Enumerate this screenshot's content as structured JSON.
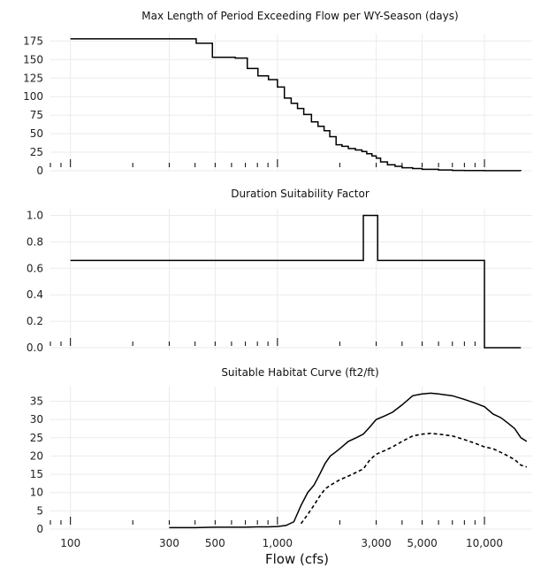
{
  "chart_data": [
    {
      "type": "line",
      "title": "Max Length of Period Exceeding Flow per WY-Season (days)",
      "xscale": "log",
      "xlim": [
        80,
        17000
      ],
      "ylim": [
        0,
        185
      ],
      "yticks": [
        0,
        25,
        50,
        75,
        100,
        125,
        150,
        175
      ],
      "ytick_labels": [
        "0",
        "25",
        "50",
        "75",
        "100",
        "125",
        "150",
        "175"
      ],
      "grid": true,
      "series": [
        {
          "step": true,
          "x": [
            100,
            405,
            485,
            625,
            715,
            805,
            905,
            1000,
            1080,
            1165,
            1250,
            1340,
            1460,
            1570,
            1680,
            1790,
            1920,
            2050,
            2200,
            2380,
            2560,
            2700,
            2860,
            3000,
            3150,
            3400,
            3700,
            4000,
            4500,
            5000,
            6000,
            7000,
            8000,
            10000,
            15000
          ],
          "y": [
            178,
            172,
            153,
            152,
            138,
            128,
            123,
            113,
            98,
            91,
            84,
            76,
            66,
            60,
            54,
            46,
            35,
            33,
            30,
            28,
            26,
            23,
            20,
            17,
            12,
            8,
            6,
            4,
            3,
            2,
            1,
            0.5,
            0.3,
            0.2,
            0
          ]
        }
      ]
    },
    {
      "type": "line",
      "title": "Duration Suitability Factor",
      "xscale": "log",
      "xlim": [
        80,
        17000
      ],
      "ylim": [
        -0.02,
        1.05
      ],
      "yticks": [
        0.0,
        0.2,
        0.4,
        0.6,
        0.8,
        1.0
      ],
      "ytick_labels": [
        "0.0",
        "0.2",
        "0.4",
        "0.6",
        "0.8",
        "1.0"
      ],
      "grid": true,
      "series": [
        {
          "step": true,
          "x": [
            100,
            2600,
            3050,
            10000,
            15000
          ],
          "y": [
            0.66,
            1.0,
            0.66,
            0.0,
            0.0
          ]
        }
      ]
    },
    {
      "type": "line",
      "title": "Suitable Habitat Curve (ft2/ft)",
      "xscale": "log",
      "xlim": [
        80,
        17000
      ],
      "ylim": [
        0,
        39
      ],
      "yticks": [
        0,
        5,
        10,
        15,
        20,
        25,
        30,
        35
      ],
      "ytick_labels": [
        "0",
        "5",
        "10",
        "15",
        "20",
        "25",
        "30",
        "35"
      ],
      "xticks": [
        100,
        300,
        500,
        1000,
        3000,
        5000,
        10000
      ],
      "xtick_labels": [
        "100",
        "300",
        "500",
        "1,000",
        "3,000",
        "5,000",
        "10,000"
      ],
      "xlabel": "Flow (cfs)",
      "grid": true,
      "series": [
        {
          "style": "solid",
          "x": [
            300,
            400,
            500,
            600,
            700,
            800,
            900,
            1000,
            1100,
            1200,
            1300,
            1400,
            1500,
            1600,
            1700,
            1800,
            1900,
            2000,
            2200,
            2400,
            2600,
            2800,
            3000,
            3300,
            3600,
            4000,
            4500,
            5000,
            5500,
            6000,
            7000,
            8000,
            9000,
            10000,
            11000,
            12000,
            13000,
            14000,
            15000,
            16000
          ],
          "y": [
            0.4,
            0.4,
            0.5,
            0.5,
            0.5,
            0.6,
            0.6,
            0.7,
            1.0,
            2.0,
            6.5,
            10,
            12,
            15,
            18,
            20,
            21,
            22,
            24,
            25,
            26,
            28,
            30,
            31,
            32,
            34,
            36.5,
            37,
            37.2,
            37,
            36.5,
            35.5,
            34.5,
            33.5,
            31.5,
            30.5,
            29,
            27.5,
            25,
            24
          ]
        },
        {
          "style": "dashed",
          "x": [
            1300,
            1400,
            1500,
            1600,
            1700,
            1800,
            2000,
            2200,
            2400,
            2600,
            2800,
            3000,
            3300,
            3600,
            4000,
            4500,
            5000,
            5500,
            6000,
            7000,
            8000,
            9000,
            10000,
            11000,
            12000,
            13000,
            14000,
            15000,
            16000
          ],
          "y": [
            1.5,
            4,
            6.5,
            9,
            11,
            12,
            13.5,
            14.5,
            15.5,
            16.5,
            19,
            20.5,
            21.5,
            22.5,
            24,
            25.5,
            26,
            26.2,
            26,
            25.5,
            24.5,
            23.5,
            22.5,
            22,
            21,
            20,
            19,
            17.5,
            17
          ]
        }
      ]
    }
  ]
}
